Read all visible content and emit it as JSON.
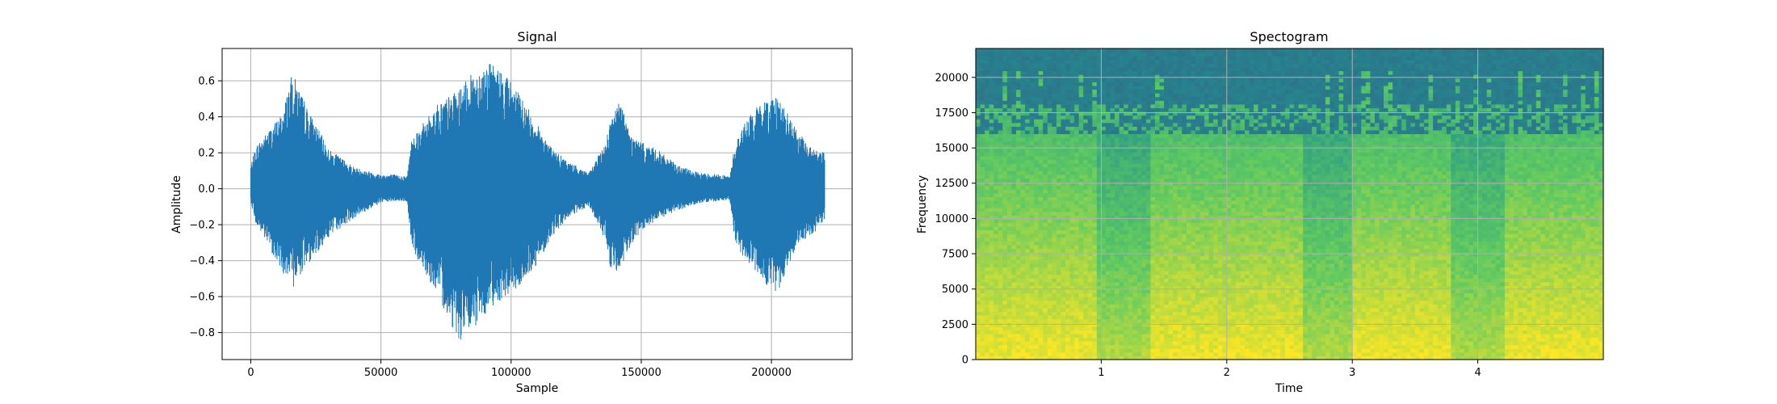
{
  "chart_data": [
    {
      "type": "line",
      "title": "Signal",
      "xlabel": "Sample",
      "ylabel": "Amplitude",
      "xlim": [
        -11000,
        231000
      ],
      "ylim": [
        -0.95,
        0.78
      ],
      "x_ticks": [
        0,
        50000,
        100000,
        150000,
        200000
      ],
      "x_tick_labels": [
        "0",
        "50000",
        "100000",
        "150000",
        "200000"
      ],
      "y_ticks": [
        -0.8,
        -0.6,
        -0.4,
        -0.2,
        0.0,
        0.2,
        0.4,
        0.6
      ],
      "y_tick_labels": [
        "−0.8",
        "−0.6",
        "−0.4",
        "−0.2",
        "0.0",
        "0.2",
        "0.4",
        "0.6"
      ],
      "grid": true,
      "color": "#1f77b4",
      "series": [
        {
          "sample_count": 220500,
          "envelope_x": [
            0,
            2000,
            6000,
            12000,
            16000,
            18000,
            22000,
            30000,
            40000,
            50000,
            55000,
            60000,
            62000,
            66000,
            72000,
            80000,
            86000,
            92000,
            98000,
            104000,
            110000,
            116000,
            122000,
            130000,
            136000,
            138000,
            142000,
            146000,
            150000,
            156000,
            164000,
            172000,
            180000,
            184000,
            186000,
            190000,
            196000,
            202000,
            210000,
            216000,
            220500
          ],
          "envelope_max": [
            0.13,
            0.24,
            0.31,
            0.42,
            0.65,
            0.58,
            0.44,
            0.22,
            0.12,
            0.08,
            0.08,
            0.07,
            0.3,
            0.36,
            0.48,
            0.55,
            0.66,
            0.7,
            0.64,
            0.51,
            0.36,
            0.22,
            0.15,
            0.09,
            0.25,
            0.38,
            0.5,
            0.3,
            0.26,
            0.22,
            0.13,
            0.09,
            0.08,
            0.07,
            0.25,
            0.38,
            0.48,
            0.53,
            0.32,
            0.22,
            0.2
          ],
          "envelope_min": [
            -0.07,
            -0.2,
            -0.3,
            -0.46,
            -0.56,
            -0.5,
            -0.42,
            -0.27,
            -0.16,
            -0.08,
            -0.07,
            -0.07,
            -0.34,
            -0.44,
            -0.6,
            -0.85,
            -0.78,
            -0.66,
            -0.6,
            -0.54,
            -0.42,
            -0.26,
            -0.16,
            -0.1,
            -0.28,
            -0.44,
            -0.47,
            -0.32,
            -0.24,
            -0.18,
            -0.12,
            -0.08,
            -0.07,
            -0.06,
            -0.3,
            -0.4,
            -0.5,
            -0.6,
            -0.3,
            -0.26,
            -0.18
          ]
        }
      ]
    },
    {
      "type": "heatmap",
      "title": "Spectogram",
      "xlabel": "Time",
      "ylabel": "Frequency",
      "xlim": [
        0,
        5.0
      ],
      "ylim": [
        0,
        22050
      ],
      "x_ticks": [
        1,
        2,
        3,
        4
      ],
      "x_tick_labels": [
        "1",
        "2",
        "3",
        "4"
      ],
      "y_ticks": [
        0,
        2500,
        5000,
        7500,
        10000,
        12500,
        15000,
        17500,
        20000
      ],
      "y_tick_labels": [
        "0",
        "2500",
        "5000",
        "7500",
        "10000",
        "12500",
        "15000",
        "17500",
        "20000"
      ],
      "grid": true,
      "colormap": "viridis",
      "loud_time_segments": [
        [
          0.0,
          1.4
        ],
        [
          1.45,
          2.95
        ],
        [
          3.05,
          4.2
        ],
        [
          4.25,
          5.0
        ]
      ],
      "quiet_time_segments": [
        [
          0.95,
          1.4
        ],
        [
          2.6,
          3.0
        ],
        [
          3.8,
          4.2
        ]
      ],
      "cutoff_frequency": 16000
    }
  ]
}
